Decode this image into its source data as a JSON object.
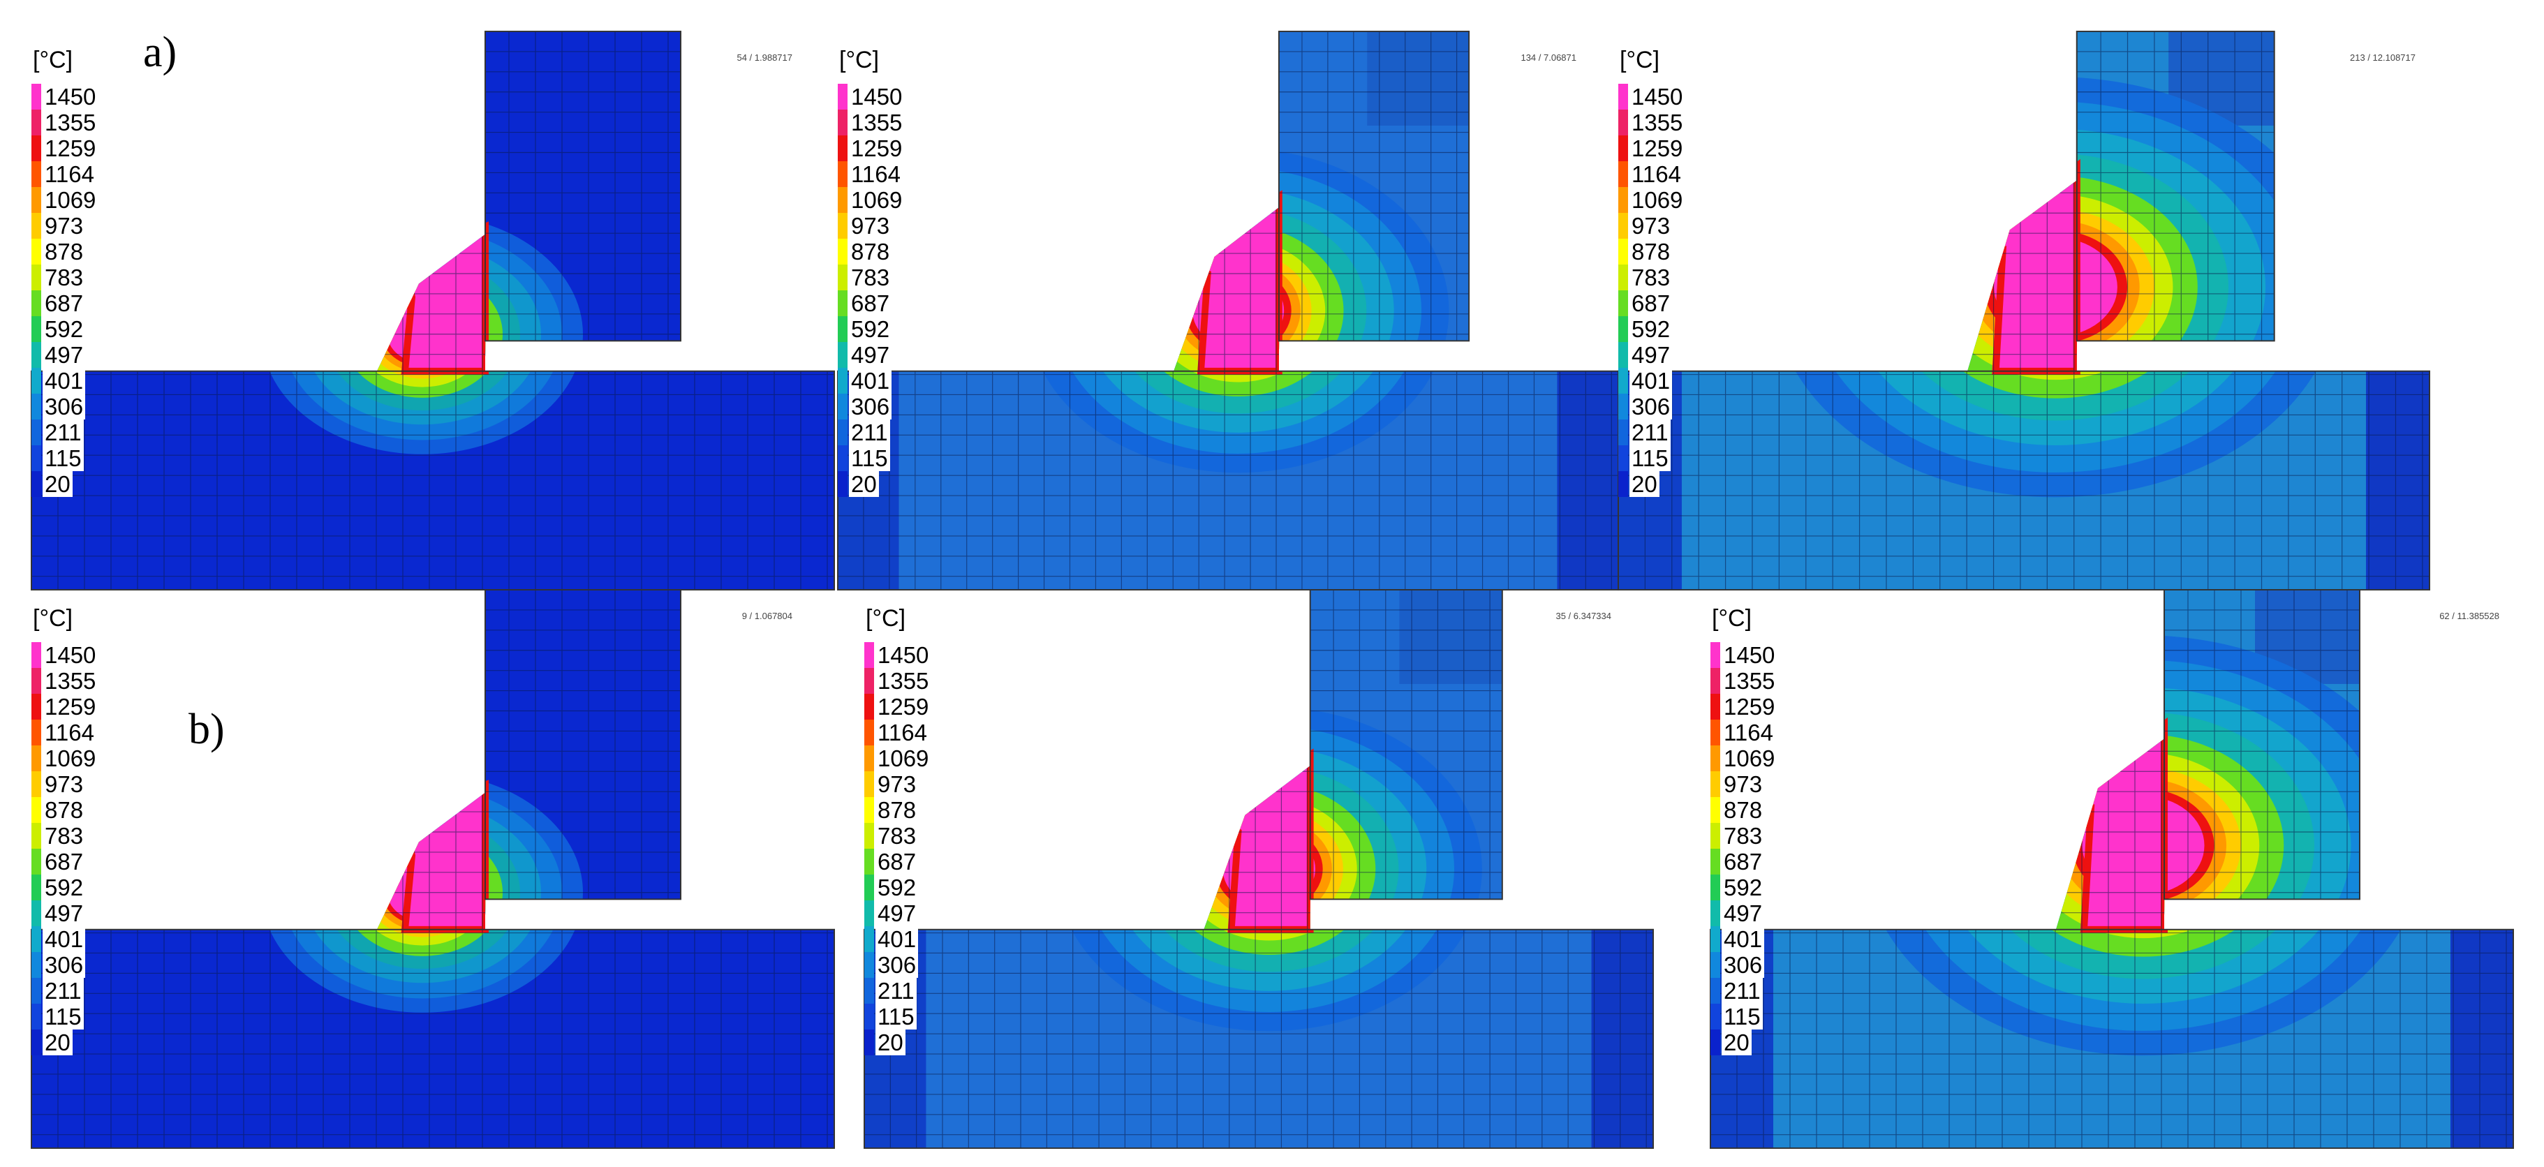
{
  "rows": [
    {
      "label": "a)",
      "panels": [
        {
          "unit": "[°C]",
          "timestamp": "54 / 1.988717",
          "stage": 0
        },
        {
          "unit": "[°C]",
          "timestamp": "134 / 7.06871",
          "stage": 1
        },
        {
          "unit": "[°C]",
          "timestamp": "213 / 12.108717",
          "stage": 2
        }
      ]
    },
    {
      "label": "b)",
      "panels": [
        {
          "unit": "[°C]",
          "timestamp": "9 / 1.067804",
          "stage": 0
        },
        {
          "unit": "[°C]",
          "timestamp": "35 / 6.347334",
          "stage": 1
        },
        {
          "unit": "[°C]",
          "timestamp": "62 / 11.385528",
          "stage": 2
        }
      ]
    }
  ],
  "legend": {
    "values": [
      "1450",
      "1355",
      "1259",
      "1164",
      "1069",
      "973",
      "878",
      "783",
      "687",
      "592",
      "497",
      "401",
      "306",
      "211",
      "115",
      "20"
    ],
    "colors": [
      "#ff33cc",
      "#ee2266",
      "#ee1111",
      "#ff5500",
      "#ff9900",
      "#ffcc00",
      "#ffff00",
      "#ccee00",
      "#66dd22",
      "#22cc55",
      "#11bbaa",
      "#11aacc",
      "#1188dd",
      "#1166dd",
      "#1144dd",
      "#0a22cc"
    ]
  }
}
